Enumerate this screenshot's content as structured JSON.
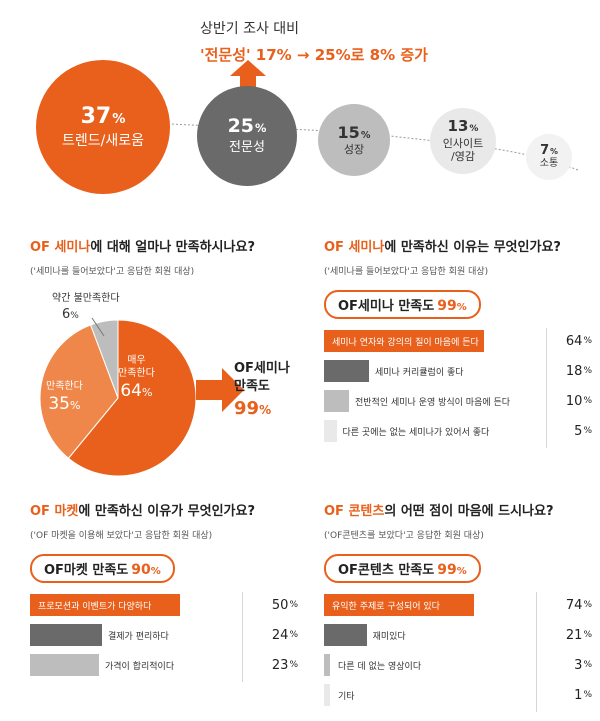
{
  "headline": {
    "line1": "상반기 조사 대비",
    "line2": "'전문성' 17% → 25%로 8% 증가"
  },
  "bubbles": [
    {
      "pct": "37",
      "unit": "%",
      "label": "트렌드/새로움",
      "color": "#e8601c"
    },
    {
      "pct": "25",
      "unit": "%",
      "label": "전문성",
      "color": "#6a6a6a"
    },
    {
      "pct": "15",
      "unit": "%",
      "label": "성장",
      "color": "#bdbdbd"
    },
    {
      "pct": "13",
      "unit": "%",
      "label": "인사이트\n/영감",
      "color": "#e9e9e9"
    },
    {
      "pct": "7",
      "unit": "%",
      "label": "소통",
      "color": "#f2f2f2"
    }
  ],
  "seminar_satisfaction": {
    "title_hl": "OF 세미나",
    "title_rest": "에 대해 얼마나 만족하시나요?",
    "subtitle": "('세미나를 들어보았다'고 응답한 회원 대상)",
    "slices": [
      {
        "label": "매우\n만족한다",
        "value": 64,
        "display": "64",
        "color": "#e8601c"
      },
      {
        "label": "만족한다",
        "value": 35,
        "display": "35",
        "color": "#f0874a"
      },
      {
        "label": "약간 불만족한다",
        "value": 6,
        "display": "6",
        "color": "#bdbdbd"
      }
    ],
    "summary_label": "OF세미나\n만족도",
    "summary_value": "99",
    "unit": "%"
  },
  "seminar_reasons": {
    "title_hl": "OF 세미나",
    "title_rest": "에 만족하신 이유는 무엇인가요?",
    "subtitle": "('세미나를 들어보았다'고 응답한 회원 대상)",
    "badge_label": "OF세미나 만족도",
    "badge_value": "99",
    "unit": "%"
  },
  "market_reasons": {
    "title_hl": "OF 마켓",
    "title_rest": "에 만족하신 이유가 무엇인가요?",
    "subtitle": "('OF 마켓을 이용해 보았다'고 응답한 회원 대상)",
    "badge_label": "OF마켓 만족도",
    "badge_value": "90",
    "unit": "%"
  },
  "content_reasons": {
    "title_hl": "OF 콘텐츠",
    "title_rest": "의 어떤 점이 마음에 드시나요?",
    "subtitle": "('OF콘텐츠를 보았다'고 응답한 회원 대상)",
    "badge_label": "OF콘텐츠 만족도",
    "badge_value": "99",
    "unit": "%"
  },
  "chart_data": [
    {
      "type": "bar",
      "chart_id": "top-reasons",
      "categories": [
        "트렌드/새로움",
        "전문성",
        "성장",
        "인사이트/영감",
        "소통"
      ],
      "values": [
        37,
        25,
        15,
        13,
        7
      ],
      "unit": "%",
      "title": "상반기 조사 대비 '전문성' 17% → 25%로 8% 증가"
    },
    {
      "type": "pie",
      "chart_id": "seminar-satisfaction",
      "categories": [
        "매우 만족한다",
        "만족한다",
        "약간 불만족한다"
      ],
      "values": [
        64,
        35,
        6
      ],
      "unit": "%",
      "title": "OF 세미나에 대해 얼마나 만족하시나요?"
    },
    {
      "type": "bar",
      "chart_id": "seminar-reasons",
      "categories": [
        "세미나 연자와 강의의 질이 마음에 든다",
        "세미나 커리큘럼이 좋다",
        "전반적인 세미나 운영 방식이 마음에 든다",
        "다른 곳에는 없는 세미나가 있어서 좋다"
      ],
      "values": [
        64,
        18,
        10,
        5
      ],
      "colors": [
        "#e8601c",
        "#6a6a6a",
        "#bdbdbd",
        "#e9e9e9"
      ],
      "unit": "%",
      "xlim": [
        0,
        100
      ],
      "title": "OF 세미나에 만족하신 이유는 무엇인가요?"
    },
    {
      "type": "bar",
      "chart_id": "market-reasons",
      "categories": [
        "프로모션과 이벤트가 다양하다",
        "결제가 편리하다",
        "가격이 합리적이다"
      ],
      "values": [
        50,
        24,
        23
      ],
      "colors": [
        "#e8601c",
        "#6a6a6a",
        "#bdbdbd"
      ],
      "unit": "%",
      "xlim": [
        0,
        100
      ],
      "title": "OF 마켓에 만족하신 이유가 무엇인가요?"
    },
    {
      "type": "bar",
      "chart_id": "content-reasons",
      "categories": [
        "유익한 주제로 구성되어 있다",
        "재미있다",
        "다른 데 없는 영상이다",
        "기타"
      ],
      "values": [
        74,
        21,
        3,
        1
      ],
      "colors": [
        "#e8601c",
        "#6a6a6a",
        "#bdbdbd",
        "#e9e9e9"
      ],
      "unit": "%",
      "xlim": [
        0,
        100
      ],
      "title": "OF 콘텐츠의 어떤 점이 마음에 드시나요?"
    }
  ]
}
